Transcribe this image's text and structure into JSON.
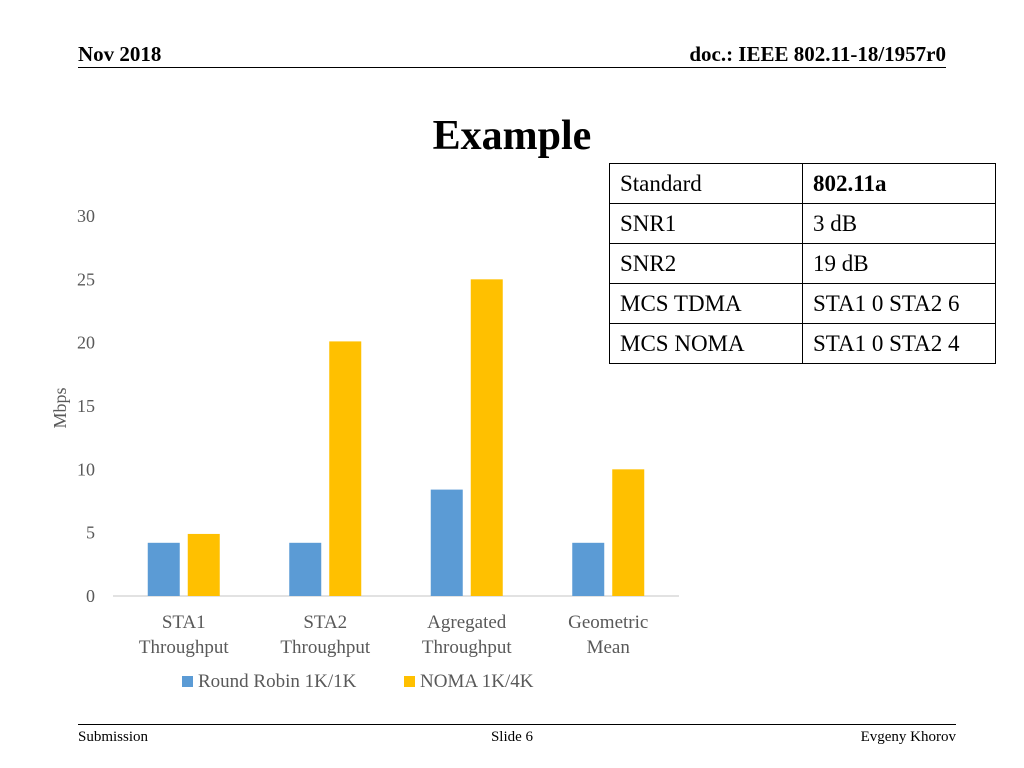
{
  "header": {
    "left": "Nov 2018",
    "right": "doc.: IEEE 802.11-18/1957r0"
  },
  "title": "Example",
  "spec_table": [
    [
      "Standard",
      "802.11a"
    ],
    [
      "SNR1",
      "3 dB"
    ],
    [
      "SNR2",
      "19 dB"
    ],
    [
      "MCS TDMA",
      "STA1 0 STA2 6"
    ],
    [
      "MCS NOMA",
      "STA1 0 STA2 4"
    ]
  ],
  "chart_data": {
    "type": "bar",
    "categories": [
      [
        "STA1",
        "Throughput"
      ],
      [
        "STA2",
        "Throughput"
      ],
      [
        "Agregated",
        "Throughput"
      ],
      [
        "Geometric",
        "Mean"
      ]
    ],
    "series": [
      {
        "name": "Round Robin 1K/1K",
        "color": "#5B9BD5",
        "values": [
          4.2,
          4.2,
          8.4,
          4.2
        ]
      },
      {
        "name": "NOMA 1K/4K",
        "color": "#FFC000",
        "values": [
          4.9,
          20.1,
          25.0,
          10.0
        ]
      }
    ],
    "ylabel": "Mbps",
    "ylim": [
      0,
      30
    ],
    "yticks": [
      "0",
      "5",
      "10",
      "15",
      "20",
      "25",
      "30"
    ],
    "grid": false,
    "legend": "bottom"
  },
  "footer": {
    "left": "Submission",
    "center": "Slide 6",
    "right": "Evgeny Khorov"
  }
}
